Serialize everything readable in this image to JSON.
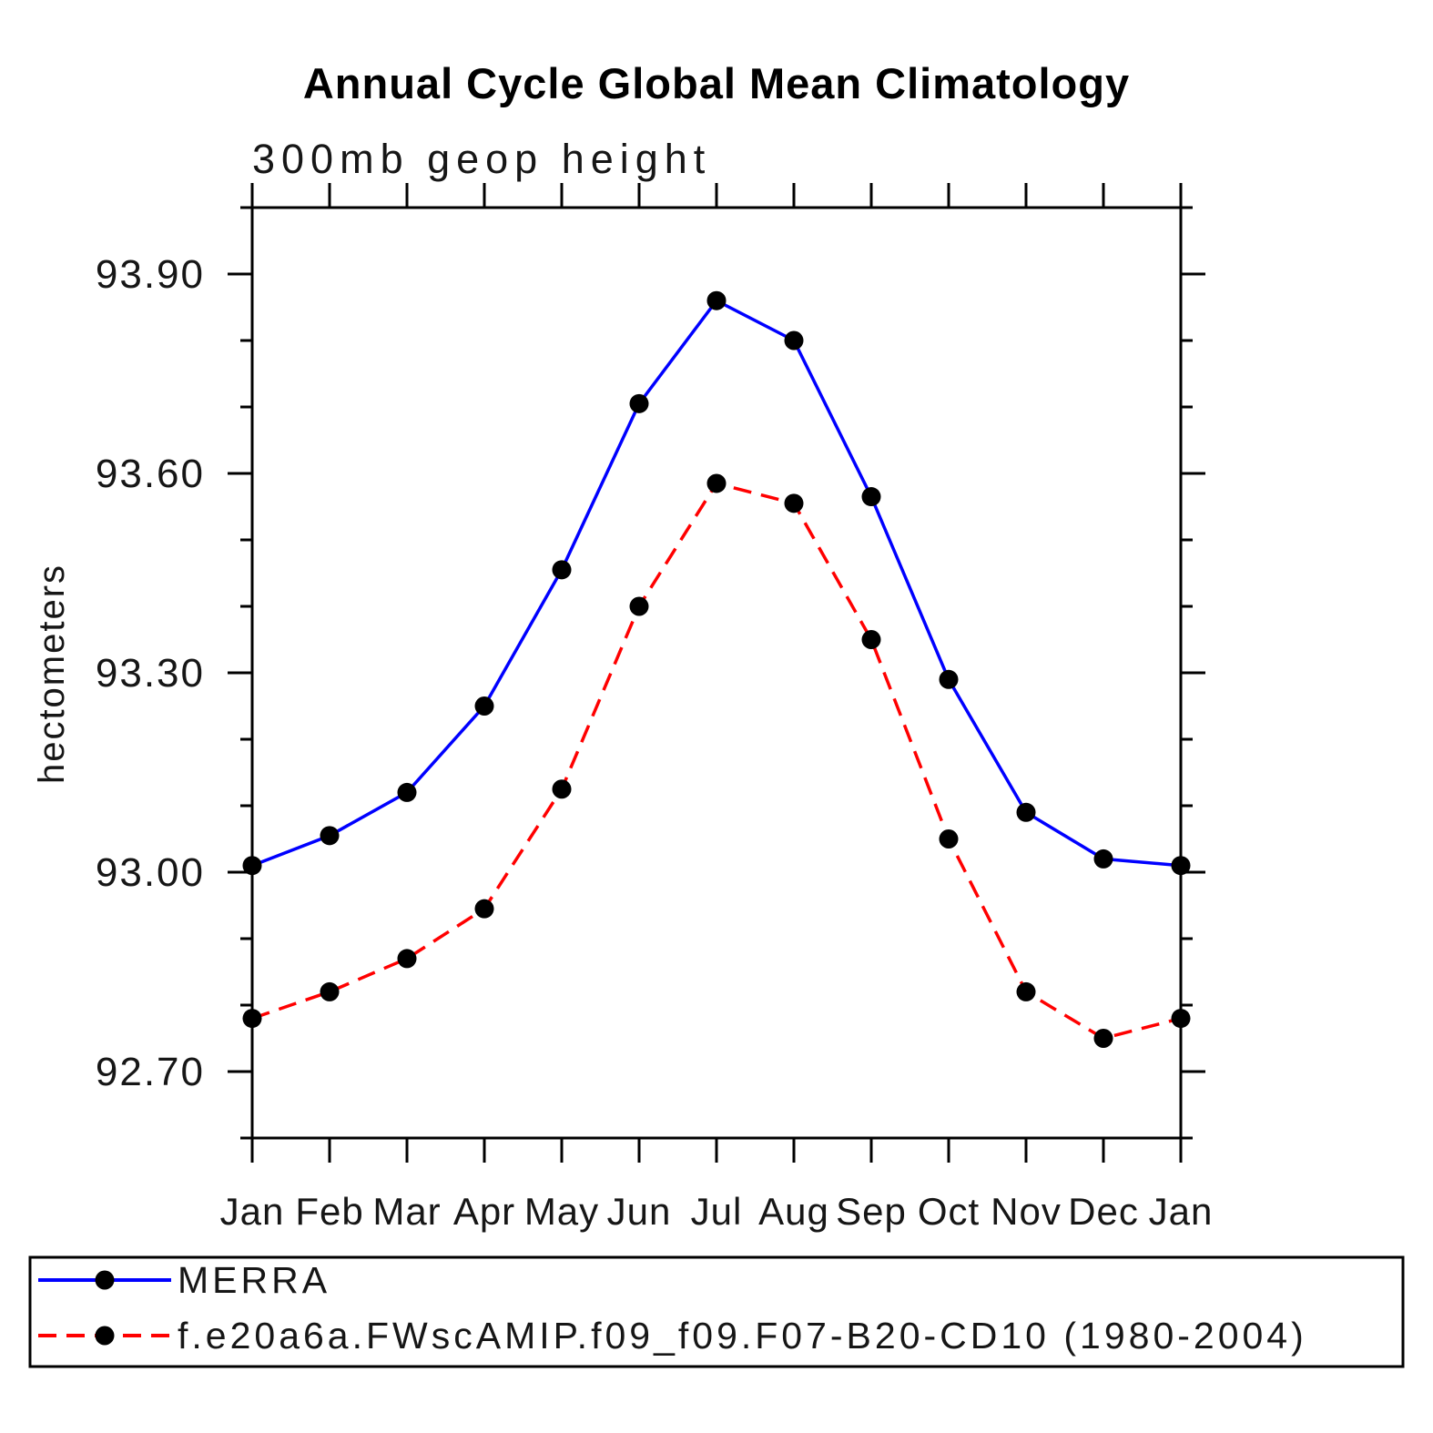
{
  "title": "Annual Cycle Global Mean Climatology",
  "subtitle": "300mb geop height",
  "y_axis_title": "hectometers",
  "colors": {
    "series1_line": "#0000ff",
    "series2_line": "#ff0000",
    "marker": "#000000",
    "axis": "#000000",
    "background": "#ffffff"
  },
  "chart_data": {
    "type": "line",
    "title": "Annual Cycle Global Mean Climatology",
    "subtitle": "300mb geop height",
    "xlabel": "",
    "ylabel": "hectometers",
    "categories": [
      "Jan",
      "Feb",
      "Mar",
      "Apr",
      "May",
      "Jun",
      "Jul",
      "Aug",
      "Sep",
      "Oct",
      "Nov",
      "Dec",
      "Jan"
    ],
    "ylim": [
      92.6,
      94.0
    ],
    "yticks_major": [
      92.7,
      93.0,
      93.3,
      93.6,
      93.9
    ],
    "ytick_minor_interval": 0.1,
    "ytick_label_format": "0.00",
    "grid": false,
    "legend_position": "bottom",
    "series": [
      {
        "name": "MERRA",
        "color": "#0000ff",
        "style": "solid",
        "marker": "filled-circle",
        "values": [
          93.01,
          93.055,
          93.12,
          93.25,
          93.455,
          93.705,
          93.86,
          93.8,
          93.565,
          93.29,
          93.09,
          93.02,
          93.01
        ]
      },
      {
        "name": "f.e20a6a.FWscAMIP.f09_f09.F07-B20-CD10 (1980-2004)",
        "color": "#ff0000",
        "style": "dashed",
        "marker": "filled-circle",
        "values": [
          92.78,
          92.82,
          92.87,
          92.945,
          93.125,
          93.4,
          93.585,
          93.555,
          93.35,
          93.05,
          92.82,
          92.75,
          92.78
        ]
      }
    ]
  }
}
